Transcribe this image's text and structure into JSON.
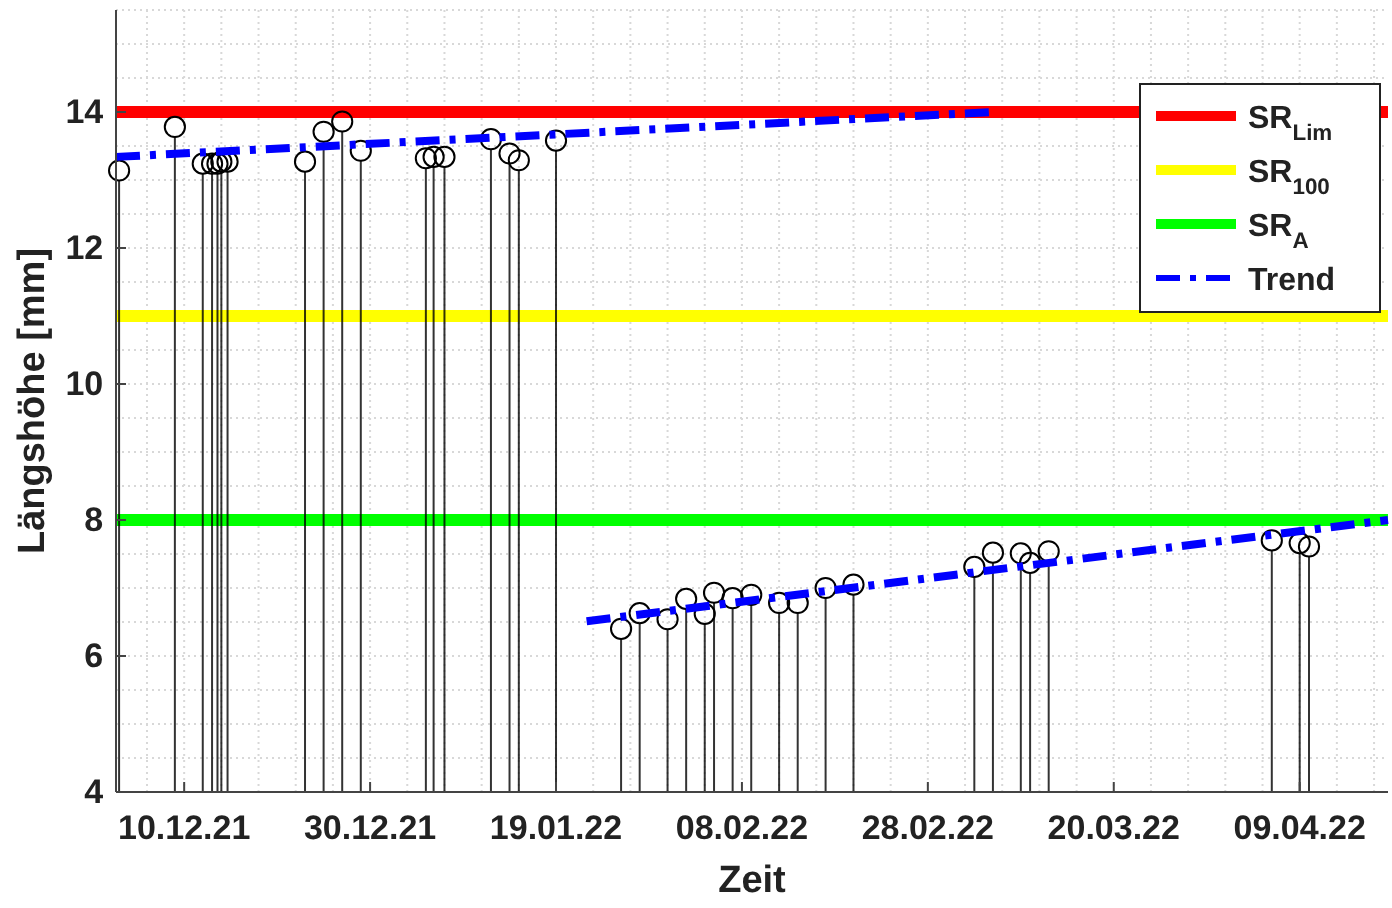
{
  "chart_data": {
    "type": "lollipop",
    "xlabel": "Zeit",
    "ylabel": "Längshöhe [mm]",
    "xlim": [
      "2021-12-02T16:00",
      "2022-04-18T12:00"
    ],
    "ylim": [
      4,
      15.5
    ],
    "xticks": [
      {
        "value": "2021-12-10",
        "label": "10.12.21"
      },
      {
        "value": "2021-12-30",
        "label": "30.12.21"
      },
      {
        "value": "2022-01-19",
        "label": "19.01.22"
      },
      {
        "value": "2022-02-08",
        "label": "08.02.22"
      },
      {
        "value": "2022-02-28",
        "label": "28.02.22"
      },
      {
        "value": "2022-03-20",
        "label": "20.03.22"
      },
      {
        "value": "2022-04-09",
        "label": "09.04.22"
      }
    ],
    "yticks": [
      4,
      6,
      8,
      10,
      12,
      14
    ],
    "grid": true,
    "legend": "top right",
    "ref_lines": [
      {
        "axis": "y",
        "value": 14,
        "label": "SR$_{Lim}$",
        "color": "#ff0000"
      },
      {
        "axis": "y",
        "value": 11,
        "label": "SR$_{100}$",
        "color": "#ffff00"
      },
      {
        "axis": "y",
        "value": 8,
        "label": "SR$_{A}$",
        "color": "#00ff00"
      }
    ],
    "series": [
      {
        "marker": "circle",
        "color": "#000000",
        "x": [
          "2021-12-03",
          "2021-12-09",
          "2021-12-12",
          "2021-12-13",
          "2021-12-13T14:00",
          "2021-12-14",
          "2021-12-14T16:00",
          "2021-12-23",
          "2021-12-25",
          "2021-12-27",
          "2021-12-29",
          "2022-01-05",
          "2022-01-05T20:00",
          "2022-01-07",
          "2022-01-12",
          "2022-01-14",
          "2022-01-15",
          "2022-01-19",
          "2022-01-26",
          "2022-01-28",
          "2022-01-31",
          "2022-02-02",
          "2022-02-04",
          "2022-02-05",
          "2022-02-07",
          "2022-02-09",
          "2022-02-12",
          "2022-02-14",
          "2022-02-17",
          "2022-02-20",
          "2022-03-05",
          "2022-03-07",
          "2022-03-10",
          "2022-03-11",
          "2022-03-13",
          "2022-04-06",
          "2022-04-09",
          "2022-04-10"
        ],
        "values": [
          13.14,
          13.78,
          13.24,
          13.24,
          13.24,
          13.27,
          13.27,
          13.27,
          13.71,
          13.86,
          13.43,
          13.32,
          13.34,
          13.34,
          13.6,
          13.39,
          13.29,
          13.58,
          6.4,
          6.63,
          6.54,
          6.84,
          6.62,
          6.93,
          6.85,
          6.9,
          6.78,
          6.78,
          7.0,
          7.05,
          7.31,
          7.52,
          7.51,
          7.37,
          7.54,
          7.7,
          7.66,
          7.61
        ]
      },
      {
        "type": "line",
        "name": "Trend",
        "color": "#0000ff",
        "line_style": "dashed",
        "x": [
          "2021-12-02T16:00",
          "2022-03-07"
        ],
        "values": [
          13.34,
          14.0
        ]
      },
      {
        "type": "line",
        "color": "#0000ff",
        "line_style": "dashed",
        "x": [
          "2022-01-22T07:00",
          "2022-04-18T12:00"
        ],
        "values": [
          6.51,
          8.0
        ]
      }
    ]
  }
}
